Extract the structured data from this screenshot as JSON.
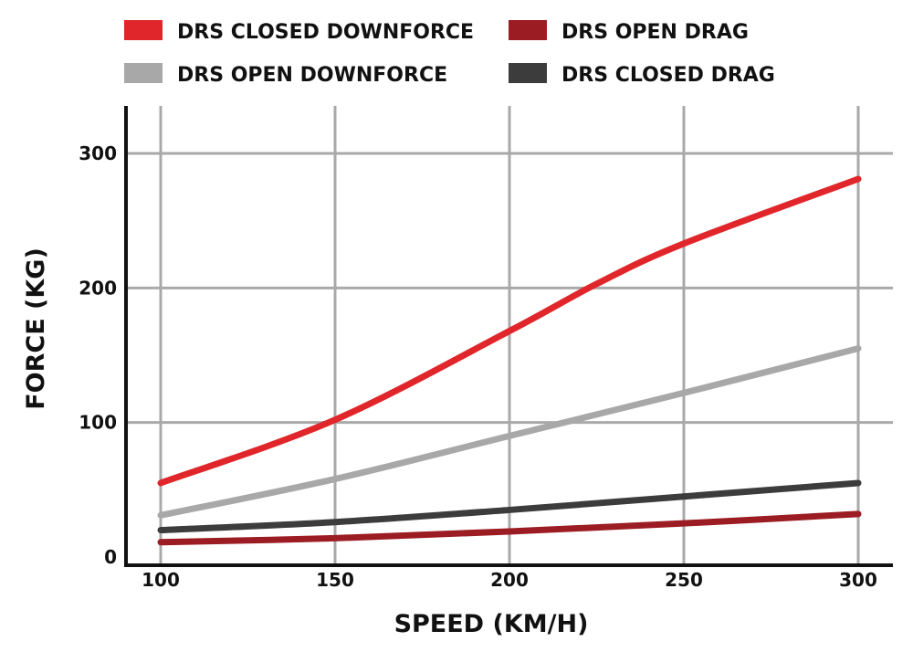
{
  "chart_data": {
    "type": "line",
    "xlabel": "SPEED (KM/H)",
    "ylabel": "FORCE (KG)",
    "xlim": [
      100,
      300
    ],
    "ylim": [
      0,
      300
    ],
    "xticks": [
      100,
      150,
      200,
      250,
      300
    ],
    "yticks": [
      0,
      100,
      200,
      300
    ],
    "grid": true,
    "legend_position": "top",
    "series": [
      {
        "name": "DRS CLOSED DOWNFORCE",
        "color": "#e0262b",
        "x": [
          100,
          150,
          200,
          225,
          250,
          300
        ],
        "y": [
          55,
          102,
          168,
          203,
          233,
          281
        ]
      },
      {
        "name": "DRS OPEN DOWNFORCE",
        "color": "#a8a8a8",
        "x": [
          100,
          150,
          200,
          250,
          300
        ],
        "y": [
          31,
          58,
          90,
          122,
          155
        ]
      },
      {
        "name": "DRS OPEN DRAG",
        "color": "#9b1c22",
        "x": [
          100,
          150,
          200,
          250,
          300
        ],
        "y": [
          11,
          14,
          19,
          25,
          32
        ]
      },
      {
        "name": "DRS CLOSED DRAG",
        "color": "#3c3c3c",
        "x": [
          100,
          150,
          200,
          250,
          300
        ],
        "y": [
          20,
          26,
          35,
          45,
          55
        ]
      }
    ]
  }
}
